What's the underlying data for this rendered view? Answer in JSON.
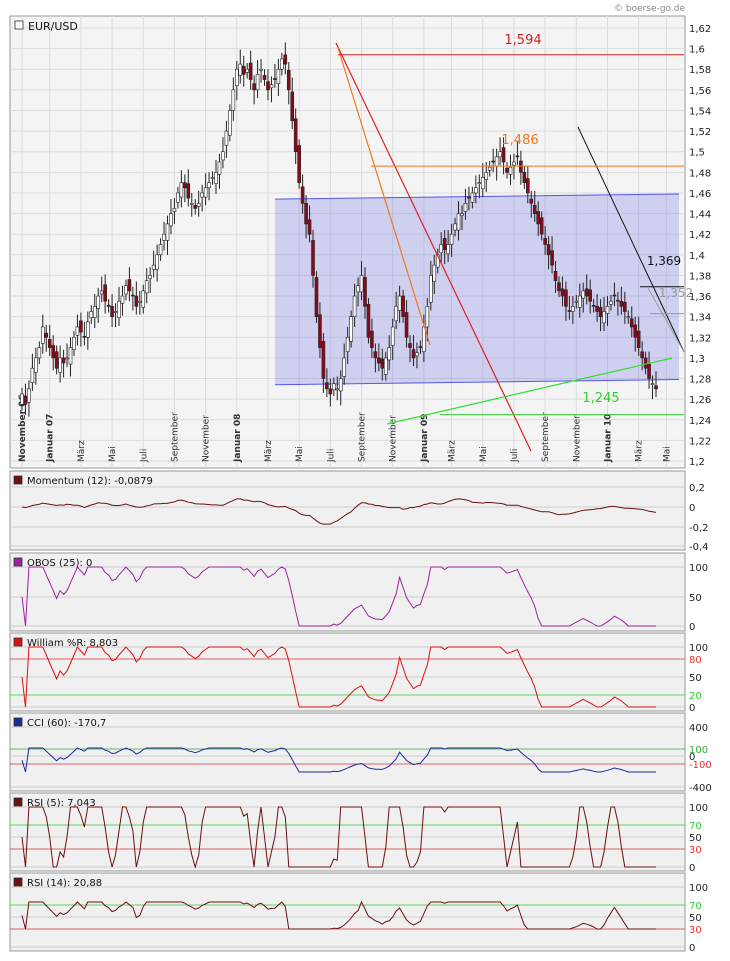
{
  "watermark": "© boerse-go.de",
  "chart_data": {
    "type": "candlestick",
    "title": "EUR/USD",
    "yaxis": {
      "range": [
        1.2,
        1.62
      ],
      "ticks": [
        "1,62",
        "1,6",
        "1,58",
        "1,56",
        "1,54",
        "1,52",
        "1,5",
        "1,48",
        "1,46",
        "1,44",
        "1,42",
        "1,4",
        "1,38",
        "1,36",
        "1,34",
        "1,32",
        "1,3",
        "1,28",
        "1,26",
        "1,24",
        "1,22",
        "1,2"
      ]
    },
    "xaxis": {
      "labels": [
        {
          "text": "November 06",
          "bold": true,
          "i": 0
        },
        {
          "text": "Januar 07",
          "bold": true,
          "i": 8
        },
        {
          "text": "März",
          "bold": false,
          "i": 17
        },
        {
          "text": "Mai",
          "bold": false,
          "i": 26
        },
        {
          "text": "Juli",
          "bold": false,
          "i": 35
        },
        {
          "text": "September",
          "bold": false,
          "i": 44
        },
        {
          "text": "November",
          "bold": false,
          "i": 53
        },
        {
          "text": "Januar 08",
          "bold": true,
          "i": 62
        },
        {
          "text": "März",
          "bold": false,
          "i": 71
        },
        {
          "text": "Mai",
          "bold": false,
          "i": 80
        },
        {
          "text": "Juli",
          "bold": false,
          "i": 89
        },
        {
          "text": "September",
          "bold": false,
          "i": 98
        },
        {
          "text": "November",
          "bold": false,
          "i": 107
        },
        {
          "text": "Januar 09",
          "bold": true,
          "i": 116
        },
        {
          "text": "März",
          "bold": false,
          "i": 124
        },
        {
          "text": "Mai",
          "bold": false,
          "i": 133
        },
        {
          "text": "Juli",
          "bold": false,
          "i": 142
        },
        {
          "text": "September",
          "bold": false,
          "i": 151
        },
        {
          "text": "November",
          "bold": false,
          "i": 160
        },
        {
          "text": "Januar 10",
          "bold": true,
          "i": 169
        },
        {
          "text": "März",
          "bold": false,
          "i": 178
        },
        {
          "text": "Mai",
          "bold": false,
          "i": 186
        }
      ]
    },
    "close": [
      1.265,
      1.255,
      1.27,
      1.29,
      1.3,
      1.31,
      1.33,
      1.32,
      1.31,
      1.3,
      1.29,
      1.3,
      1.295,
      1.3,
      1.31,
      1.32,
      1.33,
      1.325,
      1.32,
      1.335,
      1.345,
      1.35,
      1.36,
      1.365,
      1.355,
      1.35,
      1.34,
      1.345,
      1.355,
      1.36,
      1.37,
      1.365,
      1.36,
      1.35,
      1.355,
      1.365,
      1.375,
      1.38,
      1.39,
      1.4,
      1.41,
      1.42,
      1.43,
      1.44,
      1.445,
      1.46,
      1.47,
      1.465,
      1.455,
      1.45,
      1.445,
      1.45,
      1.46,
      1.465,
      1.47,
      1.475,
      1.48,
      1.49,
      1.5,
      1.52,
      1.54,
      1.56,
      1.58,
      1.585,
      1.575,
      1.58,
      1.57,
      1.56,
      1.575,
      1.58,
      1.57,
      1.56,
      1.565,
      1.57,
      1.58,
      1.59,
      1.585,
      1.56,
      1.53,
      1.5,
      1.47,
      1.45,
      1.43,
      1.42,
      1.38,
      1.34,
      1.31,
      1.28,
      1.27,
      1.265,
      1.275,
      1.27,
      1.28,
      1.3,
      1.32,
      1.34,
      1.36,
      1.37,
      1.38,
      1.35,
      1.32,
      1.31,
      1.3,
      1.295,
      1.29,
      1.3,
      1.31,
      1.33,
      1.35,
      1.36,
      1.34,
      1.32,
      1.31,
      1.3,
      1.305,
      1.31,
      1.33,
      1.35,
      1.38,
      1.39,
      1.4,
      1.41,
      1.405,
      1.41,
      1.42,
      1.43,
      1.44,
      1.44,
      1.45,
      1.455,
      1.46,
      1.465,
      1.47,
      1.475,
      1.48,
      1.485,
      1.49,
      1.495,
      1.5,
      1.49,
      1.48,
      1.485,
      1.49,
      1.495,
      1.48,
      1.47,
      1.46,
      1.45,
      1.44,
      1.43,
      1.42,
      1.41,
      1.4,
      1.39,
      1.375,
      1.365,
      1.36,
      1.35,
      1.345,
      1.35,
      1.355,
      1.36,
      1.365,
      1.36,
      1.355,
      1.35,
      1.345,
      1.34,
      1.345,
      1.35,
      1.355,
      1.36,
      1.355,
      1.35,
      1.345,
      1.34,
      1.33,
      1.32,
      1.31,
      1.3,
      1.29,
      1.28,
      1.275,
      1.27
    ],
    "levels": [
      {
        "value": "1,594",
        "color": "#cc2222"
      },
      {
        "value": "1,486",
        "color": "#f07820"
      },
      {
        "value": "1,369",
        "color": "#111111"
      },
      {
        "value": "1,352",
        "color": "#999999"
      },
      {
        "value": "1,245",
        "color": "#33cc33"
      }
    ],
    "indicators": [
      {
        "label": "Momentum (12): -0,0879",
        "color": "#6b1010",
        "ticks": [
          "0,2",
          "0",
          "-0,2",
          "-0,4"
        ]
      },
      {
        "label": "OBOS (25): 0",
        "color": "#a020a0",
        "ticks": [
          "100",
          "50",
          "0"
        ]
      },
      {
        "label": "William %R: 8,803",
        "color": "#dd1111",
        "ticks": [
          "100",
          "80",
          "50",
          "20",
          "0"
        ]
      },
      {
        "label": "CCI (60): -170,7",
        "color": "#1a2a9a",
        "ticks": [
          "400",
          "100",
          "0",
          "-100",
          "-400"
        ]
      },
      {
        "label": "RSI (5): 7,043",
        "color": "#6b1010",
        "ticks": [
          "100",
          "70",
          "50",
          "30",
          "0"
        ]
      },
      {
        "label": "RSI (14): 20,88",
        "color": "#6b1010",
        "ticks": [
          "100",
          "70",
          "50",
          "30",
          "0"
        ]
      }
    ],
    "grid": true
  }
}
